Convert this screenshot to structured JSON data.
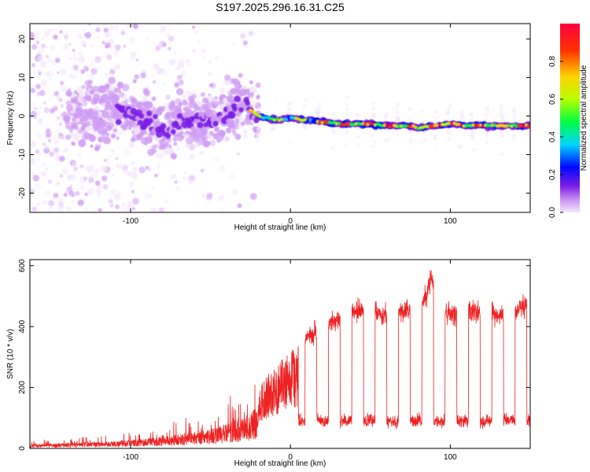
{
  "chart_data": [
    {
      "type": "heatmap",
      "title": "S197.2025.296.16.31.C25",
      "xlabel": "Height of straight line (km)",
      "ylabel": "Frequency (Hz)",
      "xlim": [
        -163,
        150
      ],
      "ylim": [
        -25,
        24
      ],
      "xticks": [
        -100,
        0,
        100
      ],
      "yticks": [
        -20,
        -10,
        0,
        10,
        20
      ],
      "colorbar": {
        "label": "Normalized spectral amplitude",
        "range": [
          0,
          1
        ],
        "ticks": [
          "0.0",
          "0.2",
          "0.4",
          "0.6",
          "0.8"
        ],
        "colors": [
          "#f3e8fb",
          "#cf9cf3",
          "#7a1ee6",
          "#0008ff",
          "#00d5ff",
          "#00ff40",
          "#b8ff00",
          "#ffd200",
          "#ff3000",
          "#ff0040"
        ]
      },
      "ridge_frequency": {
        "x": [
          -100,
          -80,
          -60,
          -45,
          -35,
          -30,
          -20,
          -10,
          0,
          10,
          20,
          30,
          40,
          50,
          60,
          70,
          80,
          90,
          100,
          110,
          120,
          130,
          145
        ],
        "y": [
          1,
          -4,
          -1,
          -1,
          2,
          3,
          0,
          -1,
          -0.5,
          -1,
          -1.5,
          -2,
          -2,
          -2,
          -2.5,
          -2.5,
          -3,
          -2.5,
          -2,
          -2.5,
          -2.5,
          -2.5,
          -2.5
        ]
      }
    },
    {
      "type": "line",
      "xlabel": "Height of straight line (km)",
      "ylabel": "SNR (10 * v/v)",
      "xlim": [
        -163,
        150
      ],
      "ylim": [
        0,
        620
      ],
      "xticks": [
        -100,
        0,
        100
      ],
      "yticks": [
        0,
        200,
        400,
        600
      ],
      "series": [
        {
          "name": "SNR",
          "color": "#ee2222",
          "envelope": {
            "x": [
              -163,
              -140,
              -120,
              -100,
              -80,
              -60,
              -50,
              -40,
              -30,
              -20,
              -10,
              0,
              10,
              20,
              30,
              40,
              50,
              60,
              70,
              80,
              85,
              88,
              90,
              92,
              95,
              100,
              110,
              120,
              130,
              140,
              150
            ],
            "y": [
              20,
              25,
              30,
              40,
              55,
              80,
              95,
              115,
              150,
              200,
              270,
              320,
              360,
              400,
              430,
              450,
              455,
              440,
              450,
              460,
              500,
              560,
              520,
              400,
              450,
              440,
              450,
              450,
              440,
              450,
              470
            ]
          }
        }
      ]
    }
  ]
}
